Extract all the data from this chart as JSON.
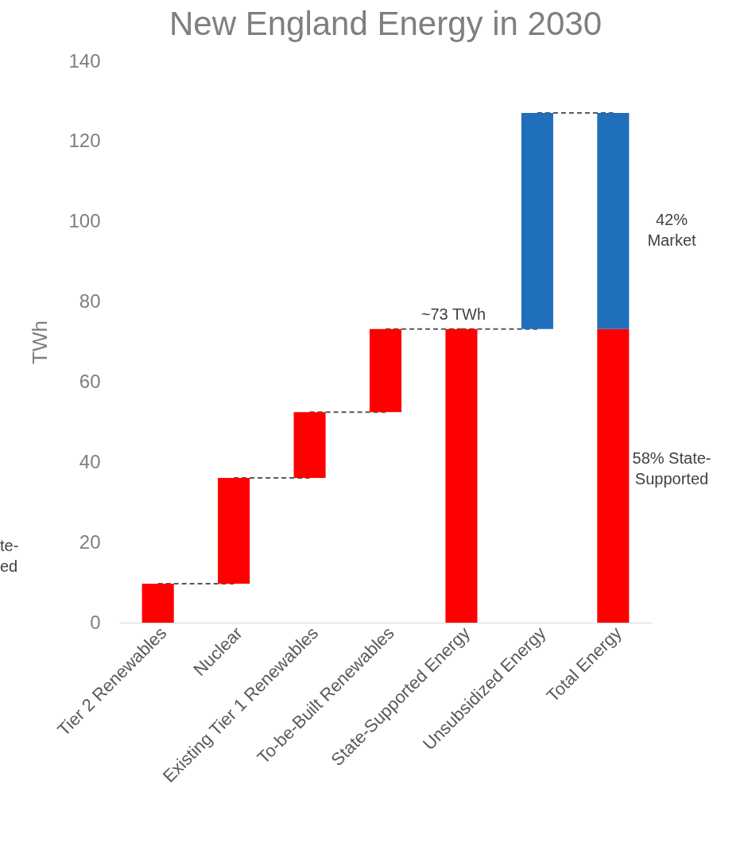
{
  "chart_data": {
    "type": "bar",
    "title": "New England Energy in 2030",
    "ylabel": "TWh",
    "categories": [
      "Tier 2 Renewables",
      "Nuclear",
      "Existing Tier 1 Renewables",
      "To-be-Built Renewables",
      "State-Supported Energy",
      "Unsubsidized Energy",
      "Total Energy"
    ],
    "series": [
      {
        "color": "#ff0000",
        "values": [
          9.7,
          26.4,
          16.4,
          20.7,
          73.2,
          null,
          73.2
        ],
        "base": [
          0,
          9.7,
          36.1,
          52.5,
          0,
          null,
          0
        ]
      },
      {
        "color": "#1f6fba",
        "values": [
          null,
          null,
          null,
          null,
          null,
          53.9,
          53.9
        ],
        "base": [
          null,
          null,
          null,
          null,
          null,
          73.2,
          73.2
        ]
      }
    ],
    "ylim": [
      0,
      140
    ],
    "yticks": [
      0,
      20,
      40,
      60,
      80,
      100,
      120,
      140
    ],
    "grid": false,
    "legend": false,
    "annotations": [
      {
        "text": "~73 TWh",
        "x": "State-Supported Energy",
        "y": 73.2
      },
      "42%\nMarket",
      "58% State-\nSupported",
      "te-\ned"
    ]
  }
}
